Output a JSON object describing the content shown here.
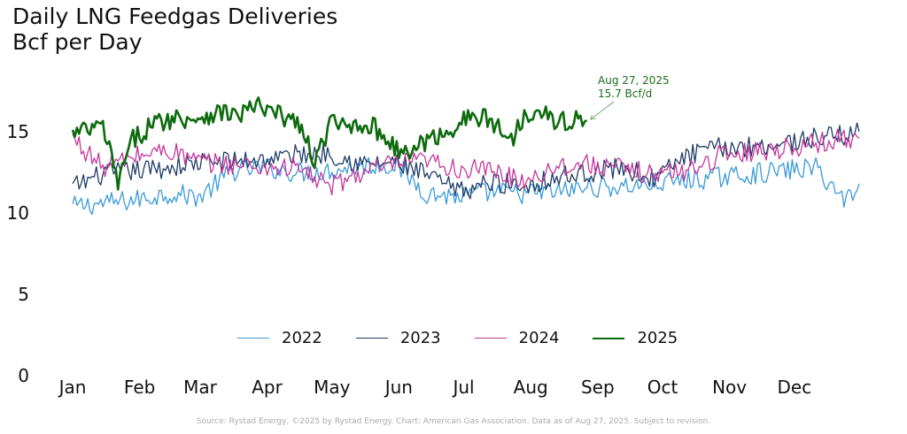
{
  "header": {
    "title": "Daily LNG Feedgas Deliveries",
    "subtitle": "Bcf per Day"
  },
  "source": "Source: Rystad Energy, ©2025 by Rystad Energy. Chart: American Gas Association. Data as of Aug 27, 2025. Subject to revision.",
  "chart_data": {
    "type": "line",
    "title": "Daily LNG Feedgas Deliveries",
    "subtitle": "Bcf per Day",
    "ylim": [
      0,
      18
    ],
    "yticks": [
      0,
      5,
      10,
      15
    ],
    "x_tick_labels": [
      "Jan",
      "Feb",
      "Mar",
      "Apr",
      "May",
      "Jun",
      "Jul",
      "Aug",
      "Sep",
      "Oct",
      "Nov",
      "Dec"
    ],
    "legend_position": "bottom-center",
    "grid": false,
    "annotation": {
      "line1": "Aug 27, 2025",
      "line2": "15.7 Bcf/d",
      "day": 239,
      "value": 15.7
    },
    "series": [
      {
        "name": "2022",
        "color": "#3a9ad9",
        "width": 1.3,
        "day": [
          1,
          15,
          30,
          45,
          60,
          75,
          90,
          105,
          120,
          135,
          150,
          165,
          180,
          195,
          210,
          225,
          240,
          255,
          270,
          285,
          300,
          315,
          330,
          345,
          358,
          365
        ],
        "values": [
          10.4,
          10.6,
          10.8,
          11.2,
          11.0,
          12.6,
          12.8,
          12.5,
          12.6,
          12.9,
          13.0,
          11.2,
          11.0,
          11.3,
          11.2,
          11.3,
          11.6,
          11.6,
          11.8,
          12.0,
          12.2,
          12.4,
          12.6,
          12.8,
          10.8,
          11.8
        ]
      },
      {
        "name": "2023",
        "color": "#1f3c66",
        "width": 1.3,
        "day": [
          1,
          15,
          30,
          45,
          60,
          75,
          90,
          105,
          120,
          135,
          150,
          165,
          180,
          195,
          210,
          225,
          240,
          255,
          270,
          285,
          300,
          315,
          330,
          345,
          358,
          365
        ],
        "values": [
          11.6,
          12.4,
          12.6,
          12.8,
          13.1,
          13.2,
          13.3,
          13.6,
          13.7,
          13.0,
          13.1,
          12.3,
          11.3,
          11.9,
          11.7,
          12.2,
          12.5,
          12.8,
          12.1,
          13.5,
          14.0,
          14.1,
          14.3,
          14.6,
          14.8,
          15.0
        ]
      },
      {
        "name": "2024",
        "color": "#c4379c",
        "width": 1.3,
        "day": [
          1,
          15,
          30,
          45,
          60,
          75,
          90,
          105,
          120,
          135,
          150,
          165,
          180,
          195,
          210,
          225,
          240,
          255,
          270,
          285,
          300,
          315,
          330,
          345,
          358,
          365
        ],
        "values": [
          14.6,
          12.8,
          13.5,
          13.9,
          13.1,
          13.0,
          12.8,
          12.8,
          11.6,
          12.5,
          13.0,
          13.2,
          12.7,
          12.6,
          12.0,
          12.9,
          13.0,
          12.7,
          12.4,
          12.6,
          13.5,
          13.8,
          14.0,
          14.3,
          14.6,
          14.6
        ]
      },
      {
        "name": "2025",
        "color": "#0d6b0d",
        "width": 2.6,
        "day": [
          1,
          8,
          15,
          22,
          29,
          36,
          43,
          50,
          57,
          64,
          71,
          78,
          85,
          92,
          99,
          106,
          113,
          120,
          127,
          134,
          141,
          148,
          155,
          162,
          169,
          176,
          183,
          190,
          197,
          204,
          211,
          218,
          225,
          232,
          239
        ],
        "values": [
          14.8,
          15.1,
          15.3,
          11.9,
          14.5,
          15.3,
          15.7,
          15.9,
          15.8,
          16.1,
          16.2,
          16.0,
          16.6,
          16.2,
          15.9,
          15.5,
          13.0,
          15.5,
          15.3,
          15.6,
          15.2,
          14.4,
          13.5,
          14.3,
          14.6,
          15.2,
          15.8,
          15.9,
          15.4,
          14.5,
          16.2,
          16.5,
          15.4,
          15.8,
          15.7
        ]
      }
    ]
  }
}
